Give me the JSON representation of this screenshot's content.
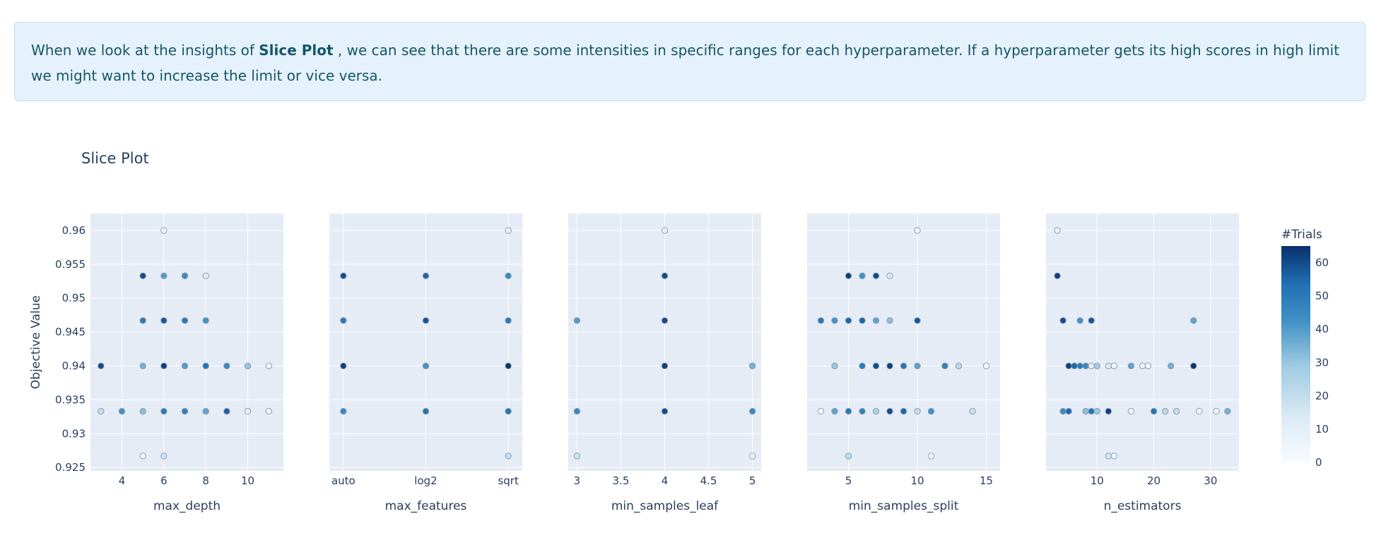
{
  "insight": {
    "prefix": "When we look at the insights of ",
    "bold": "Slice Plot",
    "suffix": " , we can see that there are some intensities in specific ranges for each hyperparameter. If a hyperparameter gets its high scores in high limit we might want to increase the limit or vice versa."
  },
  "colors": {
    "plot_bg": "#e5ecf6",
    "grid": "#ffffff",
    "text": "#2a3f5f",
    "colorscale": [
      "#f7fbff",
      "#deebf7",
      "#9ecae1",
      "#4292c6",
      "#2171b5",
      "#08306b"
    ]
  },
  "chart_data": {
    "type": "scatter",
    "title": "Slice Plot",
    "ylabel": "Objective Value",
    "ylim": [
      0.9245,
      0.9625
    ],
    "yticks": [
      "0.925",
      "0.93",
      "0.935",
      "0.94",
      "0.945",
      "0.95",
      "0.955",
      "0.96"
    ],
    "colorbar": {
      "title": "#Trials",
      "range": [
        0,
        65
      ],
      "ticks": [
        "0",
        "10",
        "20",
        "30",
        "40",
        "50",
        "60"
      ]
    },
    "subplots": [
      {
        "xlabel": "max_depth",
        "xlim": [
          2.5,
          11.7
        ],
        "xticks": [
          "4",
          "6",
          "8",
          "10"
        ],
        "xtick_values": [
          4,
          6,
          8,
          10
        ],
        "points": [
          [
            3,
            0.94,
            60
          ],
          [
            3,
            0.9333,
            20
          ],
          [
            4,
            0.9333,
            42
          ],
          [
            5,
            0.9533,
            60
          ],
          [
            5,
            0.9467,
            50
          ],
          [
            5,
            0.94,
            35
          ],
          [
            5,
            0.9333,
            32
          ],
          [
            5,
            0.9267,
            5
          ],
          [
            6,
            0.96,
            4
          ],
          [
            6,
            0.9533,
            40
          ],
          [
            6,
            0.9467,
            58
          ],
          [
            6,
            0.94,
            62
          ],
          [
            6,
            0.9333,
            50
          ],
          [
            6,
            0.9267,
            18
          ],
          [
            7,
            0.9533,
            45
          ],
          [
            7,
            0.9467,
            50
          ],
          [
            7,
            0.94,
            40
          ],
          [
            7,
            0.9333,
            48
          ],
          [
            8,
            0.9533,
            12
          ],
          [
            8,
            0.9467,
            42
          ],
          [
            8,
            0.94,
            52
          ],
          [
            8,
            0.9333,
            38
          ],
          [
            9,
            0.94,
            45
          ],
          [
            9,
            0.9333,
            56
          ],
          [
            10,
            0.94,
            30
          ],
          [
            10,
            0.9333,
            8
          ],
          [
            11,
            0.94,
            3
          ],
          [
            11,
            0.9333,
            6
          ]
        ]
      },
      {
        "xlabel": "max_features",
        "categories": [
          "auto",
          "log2",
          "sqrt"
        ],
        "points": [
          [
            "auto",
            0.9533,
            60
          ],
          [
            "auto",
            0.9467,
            50
          ],
          [
            "auto",
            0.94,
            62
          ],
          [
            "auto",
            0.9333,
            45
          ],
          [
            "log2",
            0.9533,
            55
          ],
          [
            "log2",
            0.9467,
            58
          ],
          [
            "log2",
            0.94,
            42
          ],
          [
            "log2",
            0.9333,
            52
          ],
          [
            "sqrt",
            0.96,
            8
          ],
          [
            "sqrt",
            0.9533,
            45
          ],
          [
            "sqrt",
            0.9467,
            50
          ],
          [
            "sqrt",
            0.94,
            64
          ],
          [
            "sqrt",
            0.9333,
            52
          ],
          [
            "sqrt",
            0.9267,
            20
          ]
        ]
      },
      {
        "xlabel": "min_samples_leaf",
        "xlim": [
          2.9,
          5.1
        ],
        "xticks": [
          "3",
          "3.5",
          "4",
          "4.5",
          "5"
        ],
        "xtick_values": [
          3,
          3.5,
          4,
          4.5,
          5
        ],
        "points": [
          [
            3,
            0.9467,
            40
          ],
          [
            3,
            0.9333,
            45
          ],
          [
            3,
            0.9267,
            18
          ],
          [
            4,
            0.96,
            8
          ],
          [
            4,
            0.9533,
            60
          ],
          [
            4,
            0.9467,
            60
          ],
          [
            4,
            0.94,
            62
          ],
          [
            4,
            0.9333,
            60
          ],
          [
            5,
            0.94,
            35
          ],
          [
            5,
            0.9333,
            45
          ],
          [
            5,
            0.9267,
            5
          ]
        ]
      },
      {
        "xlabel": "min_samples_split",
        "xlim": [
          2.0,
          16.0
        ],
        "xticks": [
          "5",
          "10",
          "15"
        ],
        "xtick_values": [
          5,
          10,
          15
        ],
        "points": [
          [
            3,
            0.9467,
            50
          ],
          [
            3,
            0.9333,
            2
          ],
          [
            4,
            0.9467,
            42
          ],
          [
            4,
            0.94,
            30
          ],
          [
            4,
            0.9333,
            38
          ],
          [
            5,
            0.9533,
            62
          ],
          [
            5,
            0.9467,
            55
          ],
          [
            5,
            0.9333,
            50
          ],
          [
            5,
            0.9267,
            22
          ],
          [
            6,
            0.9533,
            42
          ],
          [
            6,
            0.9467,
            55
          ],
          [
            6,
            0.94,
            50
          ],
          [
            6,
            0.9333,
            48
          ],
          [
            7,
            0.9533,
            60
          ],
          [
            7,
            0.9467,
            38
          ],
          [
            7,
            0.94,
            60
          ],
          [
            7,
            0.9333,
            26
          ],
          [
            8,
            0.9533,
            14
          ],
          [
            8,
            0.9467,
            32
          ],
          [
            8,
            0.94,
            62
          ],
          [
            8,
            0.9333,
            60
          ],
          [
            9,
            0.94,
            52
          ],
          [
            9,
            0.9333,
            55
          ],
          [
            10,
            0.96,
            5
          ],
          [
            10,
            0.9467,
            58
          ],
          [
            10,
            0.94,
            38
          ],
          [
            10,
            0.9333,
            20
          ],
          [
            11,
            0.9333,
            42
          ],
          [
            11,
            0.9267,
            4
          ],
          [
            12,
            0.94,
            48
          ],
          [
            13,
            0.94,
            22
          ],
          [
            14,
            0.9333,
            18
          ],
          [
            15,
            0.94,
            3
          ]
        ]
      },
      {
        "xlabel": "n_estimators",
        "xlim": [
          1.0,
          35.0
        ],
        "xticks": [
          "10",
          "20",
          "30"
        ],
        "xtick_values": [
          10,
          20,
          30
        ],
        "points": [
          [
            3,
            0.96,
            8
          ],
          [
            3,
            0.9533,
            62
          ],
          [
            4,
            0.9467,
            60
          ],
          [
            4,
            0.9333,
            45
          ],
          [
            5,
            0.94,
            62
          ],
          [
            5,
            0.9333,
            55
          ],
          [
            6,
            0.94,
            55
          ],
          [
            7,
            0.94,
            50
          ],
          [
            7,
            0.9467,
            42
          ],
          [
            8,
            0.94,
            45
          ],
          [
            8,
            0.9333,
            32
          ],
          [
            9,
            0.9467,
            58
          ],
          [
            9,
            0.94,
            10
          ],
          [
            9,
            0.9333,
            52
          ],
          [
            10,
            0.94,
            28
          ],
          [
            10,
            0.9333,
            30
          ],
          [
            12,
            0.94,
            14
          ],
          [
            12,
            0.9333,
            62
          ],
          [
            12,
            0.9267,
            16
          ],
          [
            13,
            0.94,
            3
          ],
          [
            13,
            0.9267,
            6
          ],
          [
            16,
            0.94,
            38
          ],
          [
            16,
            0.9333,
            4
          ],
          [
            18,
            0.94,
            5
          ],
          [
            19,
            0.94,
            3
          ],
          [
            20,
            0.9333,
            52
          ],
          [
            22,
            0.9333,
            22
          ],
          [
            23,
            0.94,
            35
          ],
          [
            24,
            0.9333,
            20
          ],
          [
            27,
            0.9467,
            38
          ],
          [
            27,
            0.94,
            64
          ],
          [
            28,
            0.9333,
            3
          ],
          [
            31,
            0.9333,
            4
          ],
          [
            33,
            0.9333,
            35
          ]
        ]
      }
    ]
  }
}
